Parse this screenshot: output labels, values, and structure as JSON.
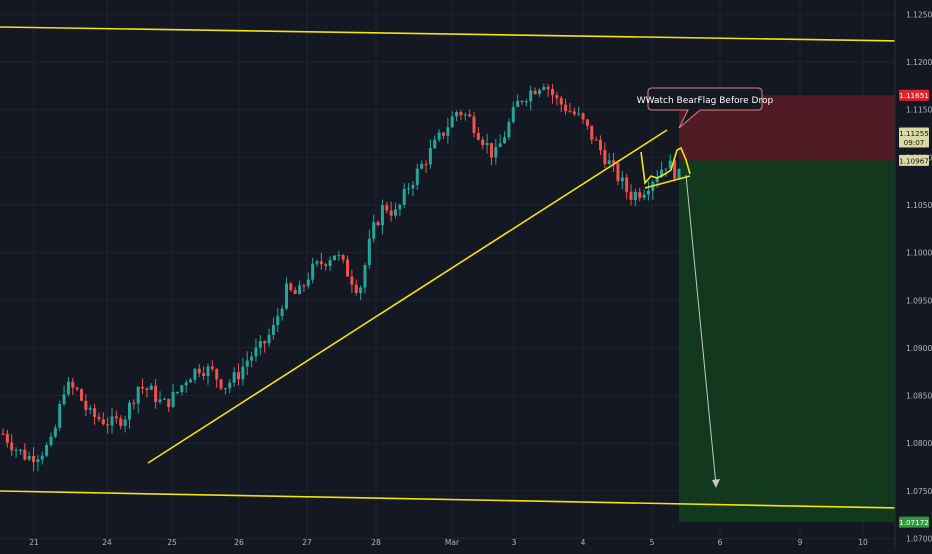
{
  "chart_data": {
    "type": "candlestick",
    "title": "",
    "theme": {
      "background": "#141823",
      "grid": "#1e2330",
      "axis_text": "#b2b5be",
      "up": "#26a69a",
      "down": "#ef5350"
    },
    "x_ticks": [
      "21",
      "24",
      "25",
      "26",
      "27",
      "28",
      "Mar",
      "3",
      "4",
      "5",
      "6",
      "9",
      "10"
    ],
    "y_ticks": [
      "1.12500",
      "1.12000",
      "1.11500",
      "1.11000",
      "1.10500",
      "1.10000",
      "1.09500",
      "1.09000",
      "1.08500",
      "1.08000",
      "1.07500",
      "1.07000"
    ],
    "ylim": [
      1.0688,
      1.1265
    ],
    "path": [
      1.081,
      1.0795,
      1.0785,
      1.079,
      1.08,
      1.086,
      1.0855,
      1.083,
      1.0825,
      1.082,
      1.083,
      1.086,
      1.0855,
      1.084,
      1.085,
      1.087,
      1.088,
      1.0875,
      1.086,
      1.087,
      1.089,
      1.09,
      1.092,
      1.096,
      1.0955,
      1.098,
      1.099,
      1.1,
      1.098,
      1.096,
      1.102,
      1.105,
      1.104,
      1.107,
      1.109,
      1.111,
      1.113,
      1.115,
      1.114,
      1.112,
      1.11,
      1.113,
      1.116,
      1.117,
      1.118,
      1.116,
      1.115,
      1.114,
      1.112,
      1.11,
      1.108,
      1.106,
      1.1065,
      1.108,
      1.1095,
      1.108
    ],
    "candle_count": 170,
    "last_candle_index": 155,
    "current_price": {
      "label": "1.11255",
      "countdown": "09:07",
      "color": "#d9d9a0"
    },
    "price_tags": [
      {
        "label": "1.11651",
        "color": "#e0242b",
        "value": 1.11651
      },
      {
        "label": "1.10967",
        "color": "#d9d9a0",
        "value": 1.10967
      },
      {
        "label": "1.07172",
        "color": "#2e9a3a",
        "value": 1.07172
      }
    ],
    "position": {
      "side": "short",
      "entry": 1.10967,
      "stop_loss": 1.11651,
      "take_profit": 1.07172,
      "stop_color": "#5a1c25",
      "profit_color": "#123a1e"
    },
    "trendlines": [
      {
        "name": "channel-top",
        "color": "#f5e30c"
      },
      {
        "name": "channel-bottom",
        "color": "#f5e30c"
      },
      {
        "name": "rising-support",
        "color": "#f5e30c"
      },
      {
        "name": "flag-lower",
        "color": "#f5e30c"
      }
    ],
    "annotations": [
      {
        "text": "WWatch BearFlag Before Drop",
        "color": "#ffffff",
        "border": "#e08080"
      }
    ]
  }
}
